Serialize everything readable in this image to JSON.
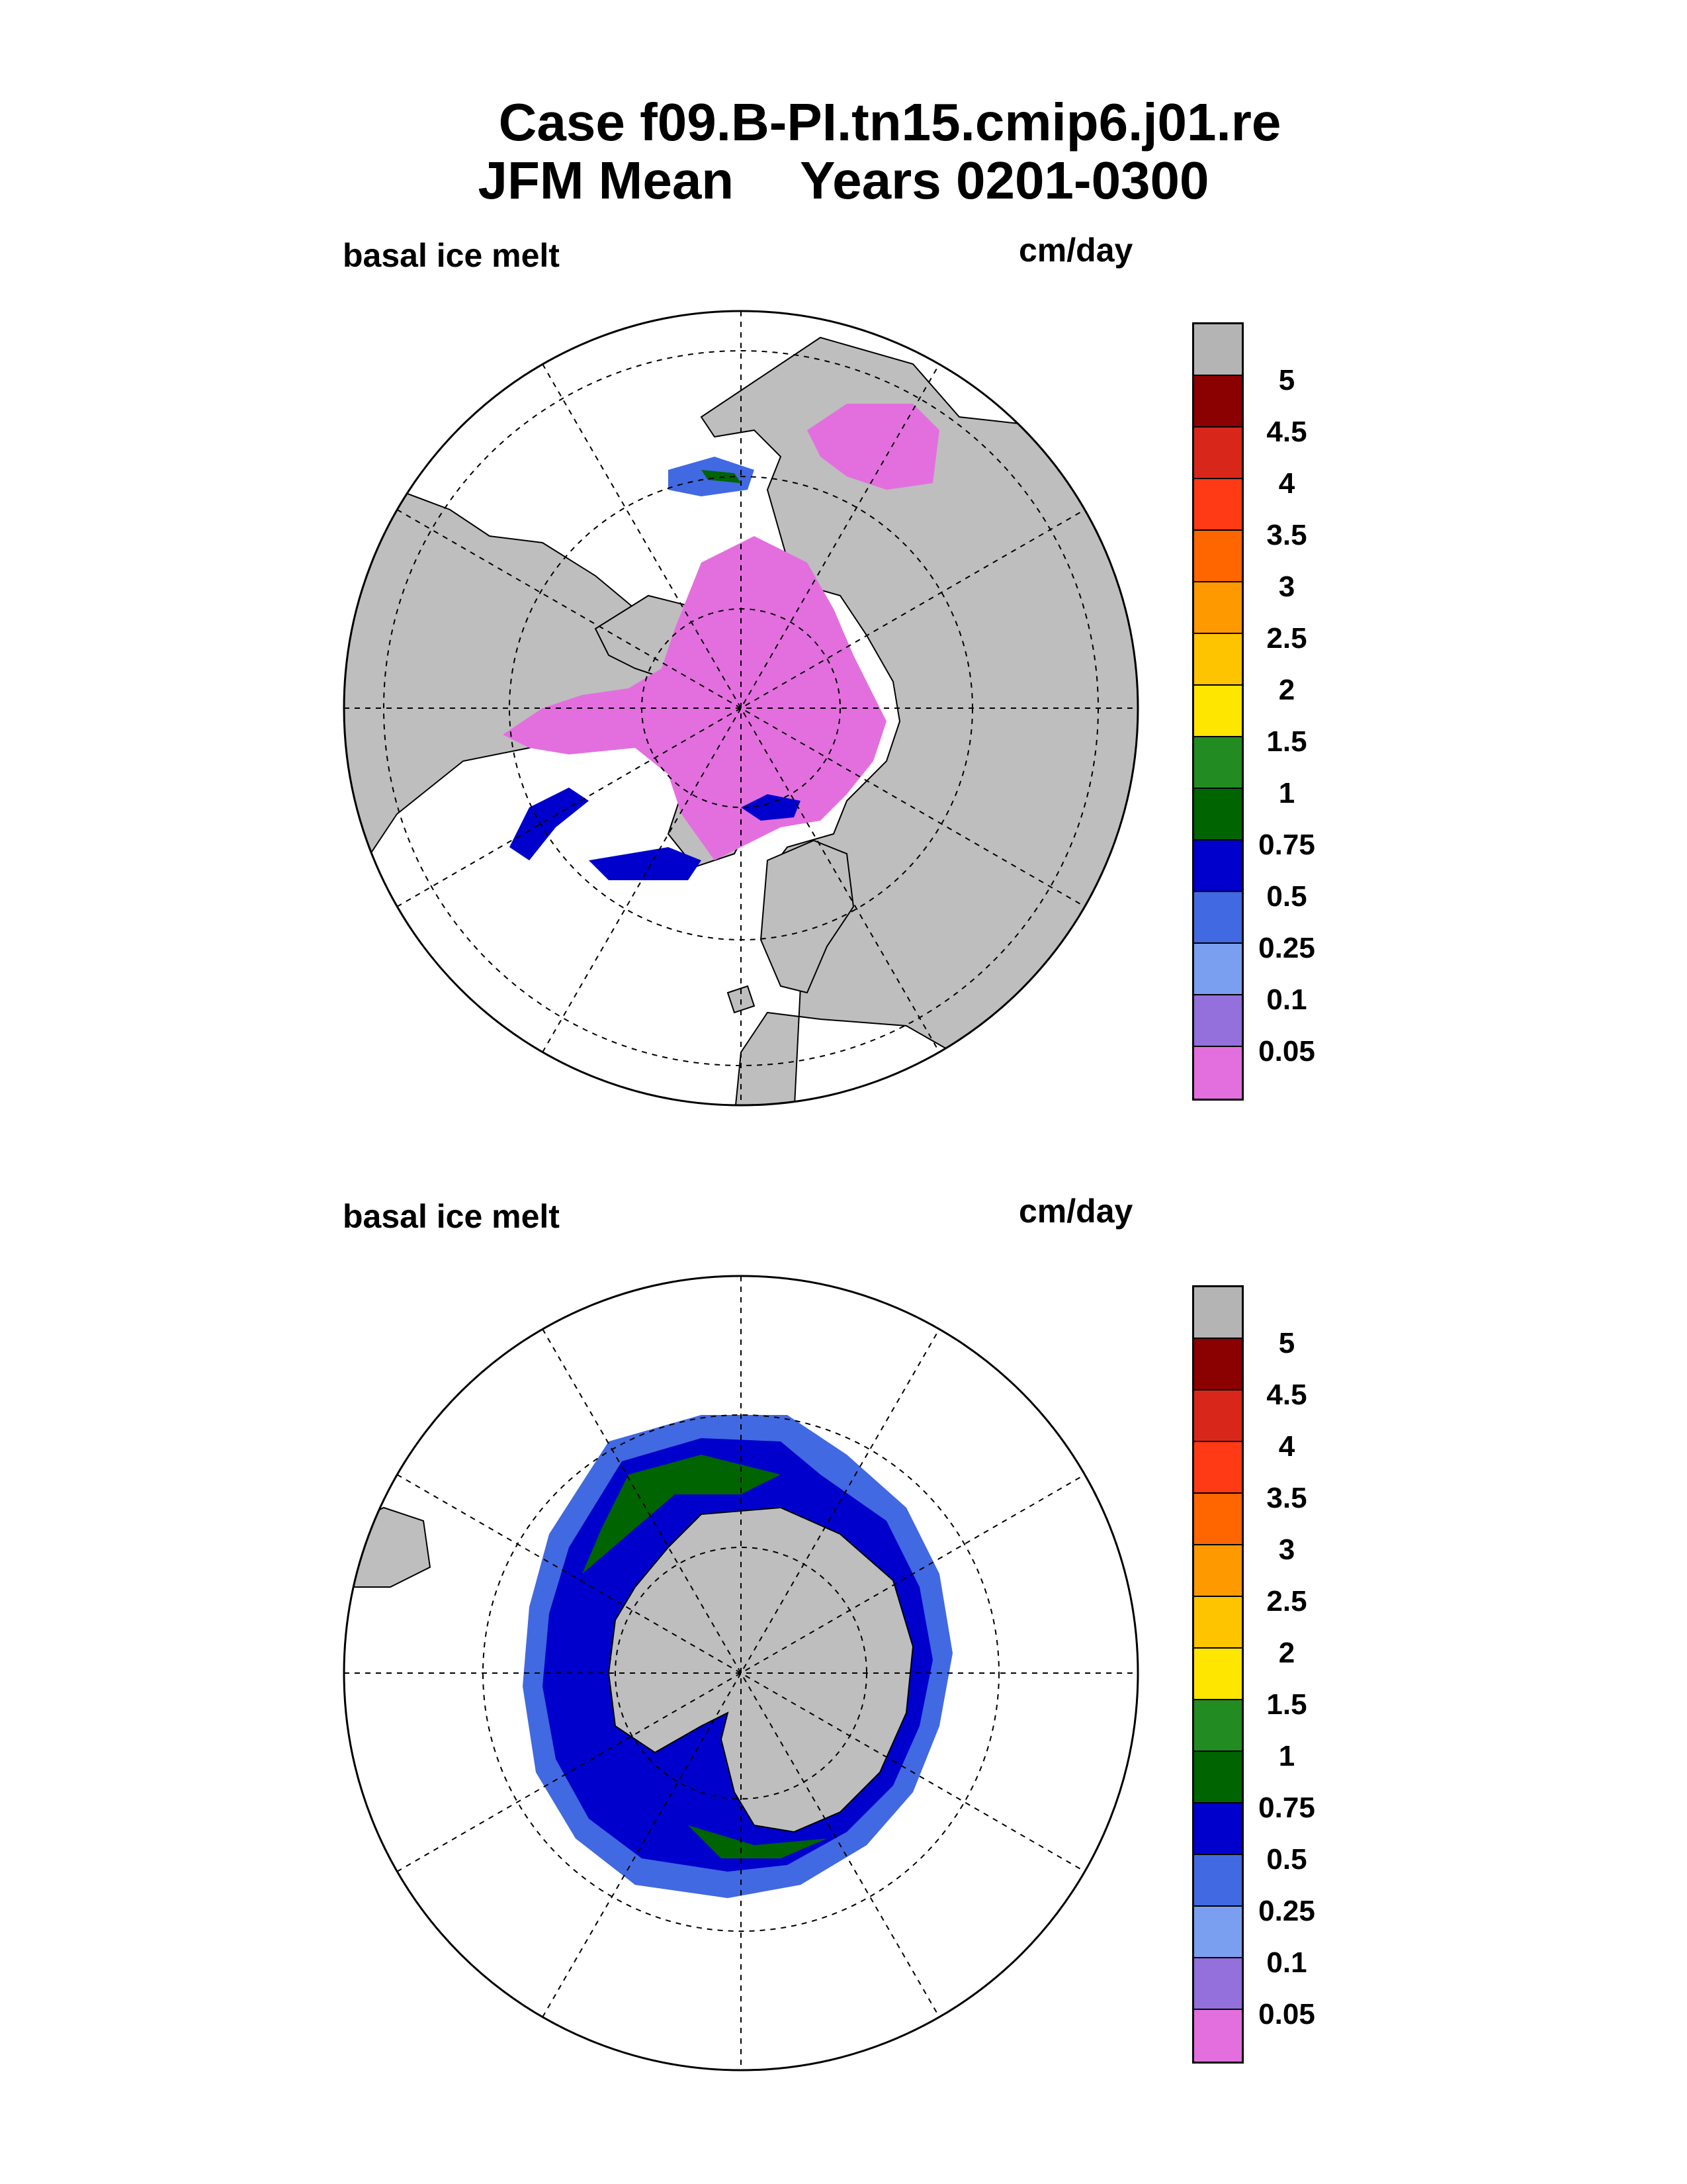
{
  "title": {
    "line1": "Case f09.B-PI.tn15.cmip6.j01.re",
    "season": "JFM Mean",
    "years": "Years 0201-0300"
  },
  "panels": [
    {
      "hemisphere": "north",
      "left_label": "basal ice melt",
      "right_label": "cm/day"
    },
    {
      "hemisphere": "south",
      "left_label": "basal ice melt",
      "right_label": "cm/day"
    }
  ],
  "colorbar": {
    "tick_labels": [
      "5",
      "4.5",
      "4",
      "3.5",
      "3",
      "2.5",
      "2",
      "1.5",
      "1",
      "0.75",
      "0.5",
      "0.25",
      "0.1",
      "0.05"
    ],
    "colors_top_to_bottom": [
      "#b4b4b4",
      "#8b0000",
      "#d9261a",
      "#ff3a14",
      "#ff6600",
      "#ff9900",
      "#ffc400",
      "#ffe600",
      "#228b22",
      "#006400",
      "#0000cd",
      "#4169e1",
      "#7b9ff0",
      "#9370db",
      "#e36fdf"
    ]
  },
  "map_colors": {
    "land": "#bebebe",
    "ocean": "#ffffff",
    "ice_low": "#e36fdf",
    "ice_mid": "#4169e1",
    "ice_high": "#0000cd",
    "ice_top": "#006400"
  }
}
